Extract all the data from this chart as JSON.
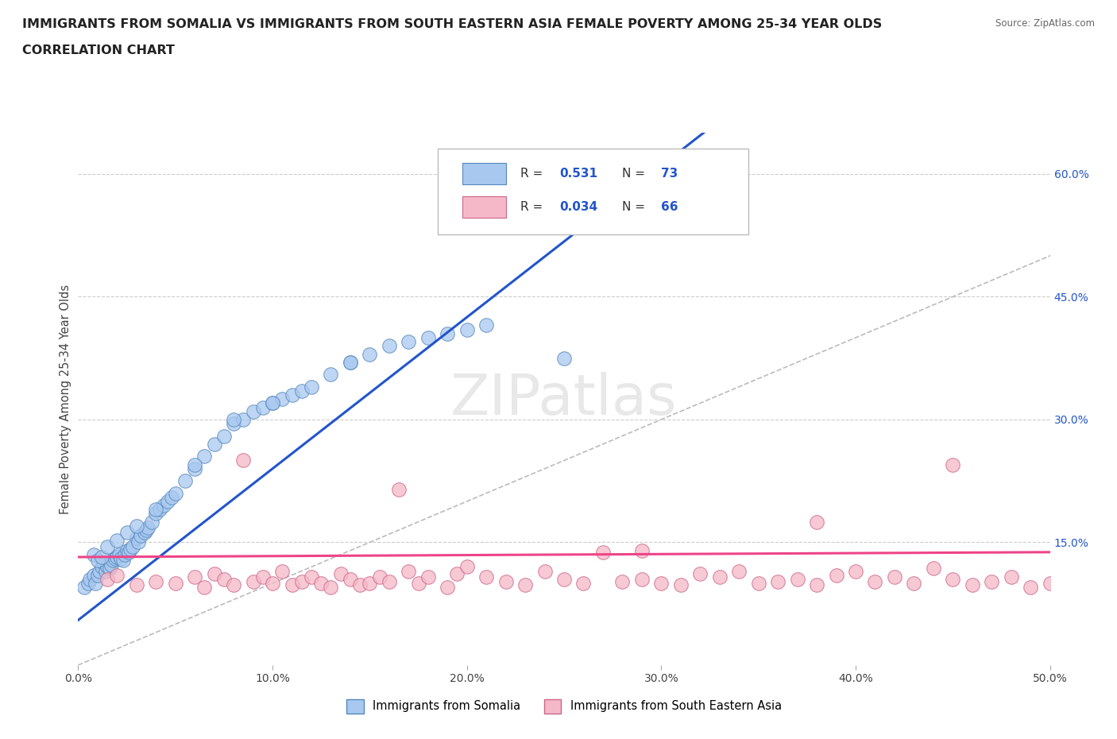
{
  "title_line1": "IMMIGRANTS FROM SOMALIA VS IMMIGRANTS FROM SOUTH EASTERN ASIA FEMALE POVERTY AMONG 25-34 YEAR OLDS",
  "title_line2": "CORRELATION CHART",
  "source_text": "Source: ZipAtlas.com",
  "ylabel": "Female Poverty Among 25-34 Year Olds",
  "xlim": [
    0.0,
    0.5
  ],
  "ylim": [
    0.0,
    0.65
  ],
  "x_ticks": [
    0.0,
    0.1,
    0.2,
    0.3,
    0.4,
    0.5
  ],
  "x_tick_labels": [
    "0.0%",
    "10.0%",
    "20.0%",
    "30.0%",
    "40.0%",
    "50.0%"
  ],
  "y_ticks": [
    0.15,
    0.3,
    0.45,
    0.6
  ],
  "y_tick_labels": [
    "15.0%",
    "30.0%",
    "45.0%",
    "60.0%"
  ],
  "gridline_color": "#cccccc",
  "watermark": "ZIPatlas",
  "somalia_color": "#a8c8f0",
  "somalia_edge_color": "#5588bb",
  "sea_color": "#f5b8c8",
  "sea_edge_color": "#cc6688",
  "somalia_R": 0.531,
  "somalia_N": 73,
  "sea_R": 0.034,
  "sea_N": 66,
  "somalia_line_color": "#2255cc",
  "sea_line_color": "#ee4488",
  "diag_line_color": "#bbbbbb",
  "somalia_line_slope": 1.85,
  "somalia_line_intercept": 0.055,
  "sea_line_slope": 0.012,
  "sea_line_intercept": 0.132,
  "somalia_scatter_x": [
    0.003,
    0.005,
    0.006,
    0.008,
    0.009,
    0.01,
    0.011,
    0.012,
    0.013,
    0.014,
    0.015,
    0.016,
    0.017,
    0.018,
    0.019,
    0.02,
    0.021,
    0.022,
    0.023,
    0.024,
    0.025,
    0.026,
    0.027,
    0.028,
    0.03,
    0.031,
    0.032,
    0.034,
    0.035,
    0.036,
    0.038,
    0.04,
    0.042,
    0.044,
    0.046,
    0.048,
    0.05,
    0.055,
    0.06,
    0.065,
    0.07,
    0.075,
    0.08,
    0.085,
    0.09,
    0.095,
    0.1,
    0.105,
    0.11,
    0.115,
    0.12,
    0.13,
    0.14,
    0.15,
    0.16,
    0.17,
    0.18,
    0.19,
    0.2,
    0.21,
    0.008,
    0.01,
    0.012,
    0.015,
    0.02,
    0.025,
    0.03,
    0.04,
    0.06,
    0.08,
    0.1,
    0.14,
    0.25
  ],
  "somalia_scatter_y": [
    0.095,
    0.1,
    0.105,
    0.11,
    0.1,
    0.11,
    0.115,
    0.12,
    0.125,
    0.115,
    0.12,
    0.118,
    0.122,
    0.128,
    0.13,
    0.132,
    0.135,
    0.13,
    0.128,
    0.135,
    0.14,
    0.138,
    0.142,
    0.145,
    0.155,
    0.15,
    0.158,
    0.162,
    0.165,
    0.168,
    0.175,
    0.185,
    0.19,
    0.195,
    0.2,
    0.205,
    0.21,
    0.225,
    0.24,
    0.255,
    0.27,
    0.28,
    0.295,
    0.3,
    0.31,
    0.315,
    0.32,
    0.325,
    0.33,
    0.335,
    0.34,
    0.355,
    0.37,
    0.38,
    0.39,
    0.395,
    0.4,
    0.405,
    0.41,
    0.415,
    0.135,
    0.128,
    0.132,
    0.145,
    0.152,
    0.162,
    0.17,
    0.19,
    0.245,
    0.3,
    0.32,
    0.37,
    0.375
  ],
  "sea_scatter_x": [
    0.015,
    0.02,
    0.03,
    0.04,
    0.05,
    0.06,
    0.065,
    0.07,
    0.075,
    0.08,
    0.09,
    0.095,
    0.1,
    0.105,
    0.11,
    0.115,
    0.12,
    0.125,
    0.13,
    0.135,
    0.14,
    0.145,
    0.15,
    0.155,
    0.16,
    0.17,
    0.175,
    0.18,
    0.19,
    0.195,
    0.2,
    0.21,
    0.22,
    0.23,
    0.24,
    0.25,
    0.26,
    0.27,
    0.28,
    0.29,
    0.3,
    0.31,
    0.32,
    0.33,
    0.34,
    0.35,
    0.36,
    0.37,
    0.38,
    0.39,
    0.4,
    0.41,
    0.42,
    0.43,
    0.44,
    0.45,
    0.46,
    0.47,
    0.48,
    0.49,
    0.5,
    0.085,
    0.165,
    0.29,
    0.38,
    0.45
  ],
  "sea_scatter_y": [
    0.105,
    0.11,
    0.098,
    0.102,
    0.1,
    0.108,
    0.095,
    0.112,
    0.105,
    0.098,
    0.102,
    0.108,
    0.1,
    0.115,
    0.098,
    0.102,
    0.108,
    0.1,
    0.095,
    0.112,
    0.105,
    0.098,
    0.1,
    0.108,
    0.102,
    0.115,
    0.1,
    0.108,
    0.095,
    0.112,
    0.12,
    0.108,
    0.102,
    0.098,
    0.115,
    0.105,
    0.1,
    0.138,
    0.102,
    0.105,
    0.1,
    0.098,
    0.112,
    0.108,
    0.115,
    0.1,
    0.102,
    0.105,
    0.098,
    0.11,
    0.115,
    0.102,
    0.108,
    0.1,
    0.118,
    0.105,
    0.098,
    0.102,
    0.108,
    0.095,
    0.1,
    0.25,
    0.215,
    0.14,
    0.175,
    0.245
  ],
  "background_color": "#ffffff"
}
